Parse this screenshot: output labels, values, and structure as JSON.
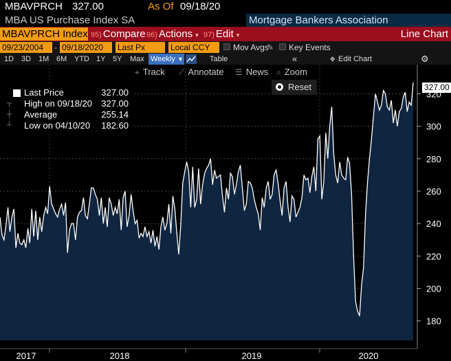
{
  "header": {
    "ticker": "MBAVPRCH",
    "price": "327.00",
    "as_of_label": "As Of",
    "as_of_date": "09/18/20",
    "subtitle": "MBA US Purchase Index SA",
    "source": "Mortgage Bankers Association"
  },
  "toolbar": {
    "security": "MBAVPRCH Index",
    "compare": {
      "num": "95)",
      "label": "Compare"
    },
    "actions": {
      "num": "96)",
      "label": "Actions"
    },
    "edit": {
      "num": "97)",
      "label": "Edit"
    },
    "chart_type": "Line Chart"
  },
  "range": {
    "start": "09/23/2004",
    "end": "09/18/2020",
    "field": "Last Px",
    "currency": "Local CCY",
    "mov_avgs": "Mov Avgs",
    "key_events": "Key Events"
  },
  "periods": [
    "1D",
    "3D",
    "1M",
    "6M",
    "YTD",
    "1Y",
    "5Y",
    "Max"
  ],
  "frequency": "Weekly",
  "table_label": "Table",
  "edit_chart": "Edit Chart",
  "tools": {
    "track": "Track",
    "annotate": "Annotate",
    "news": "News",
    "zoom": "Zoom",
    "reset": "Reset"
  },
  "legend": {
    "last_price_label": "Last Price",
    "last_price": "327.00",
    "high_label": "High on 09/18/20",
    "high": "327.00",
    "average_label": "Average",
    "average": "255.14",
    "low_label": "Low on 04/10/20",
    "low": "182.60"
  },
  "colors": {
    "line": "#ffffff",
    "fill": "#0f2540",
    "accent": "#f39c12",
    "toolbar": "#9a0e1e"
  },
  "chart_data": {
    "type": "area",
    "title": "MBA US Purchase Index SA",
    "x_tick_labels": [
      "2017",
      "2018",
      "2019",
      "2020"
    ],
    "y_ticks": [
      180,
      200,
      220,
      240,
      260,
      280,
      300,
      320
    ],
    "ylim": [
      168,
      338
    ],
    "last_value_label": "327.00",
    "series": [
      {
        "name": "Last Price",
        "values": [
          244,
          233,
          230,
          239,
          250,
          235,
          244,
          249,
          225,
          234,
          228,
          227,
          230,
          225,
          237,
          228,
          249,
          232,
          248,
          230,
          244,
          235,
          245,
          250,
          246,
          263,
          252,
          249,
          246,
          244,
          249,
          252,
          245,
          253,
          222,
          236,
          240,
          240,
          230,
          244,
          247,
          248,
          256,
          245,
          243,
          252,
          262,
          262,
          258,
          255,
          245,
          256,
          240,
          250,
          238,
          256,
          252,
          245,
          250,
          246,
          255,
          236,
          256,
          260,
          238,
          245,
          258,
          248,
          240,
          242,
          231,
          234,
          232,
          238,
          232,
          235,
          228,
          236,
          226,
          232,
          224,
          238,
          244,
          236,
          240,
          252,
          234,
          257,
          249,
          234,
          221,
          239,
          265,
          272,
          278,
          272,
          250,
          275,
          250,
          255,
          274,
          252,
          264,
          271,
          274,
          276,
          280,
          264,
          273,
          268,
          269,
          270,
          257,
          247,
          262,
          255,
          271,
          269,
          258,
          264,
          272,
          276,
          262,
          248,
          252,
          266,
          265,
          262,
          255,
          250,
          246,
          236,
          256,
          250,
          262,
          266,
          255,
          258,
          270,
          273,
          265,
          254,
          245,
          262,
          266,
          250,
          241,
          257,
          255,
          244,
          247,
          250,
          256,
          270,
          267,
          268,
          259,
          269,
          275,
          260,
          292,
          294,
          255,
          266,
          296,
          280,
          300,
          312,
          283,
          270,
          265,
          278,
          270,
          268,
          267,
          281,
          277,
          258,
          220,
          192,
          186,
          183,
          202,
          213,
          246,
          265,
          280,
          292,
          306,
          320,
          315,
          310,
          313,
          322,
          320,
          312,
          310,
          316,
          302,
          310,
          300,
          309,
          311,
          318,
          321,
          309,
          315,
          313,
          327
        ]
      }
    ],
    "grid": "dashed",
    "legend_position": "top-left"
  }
}
